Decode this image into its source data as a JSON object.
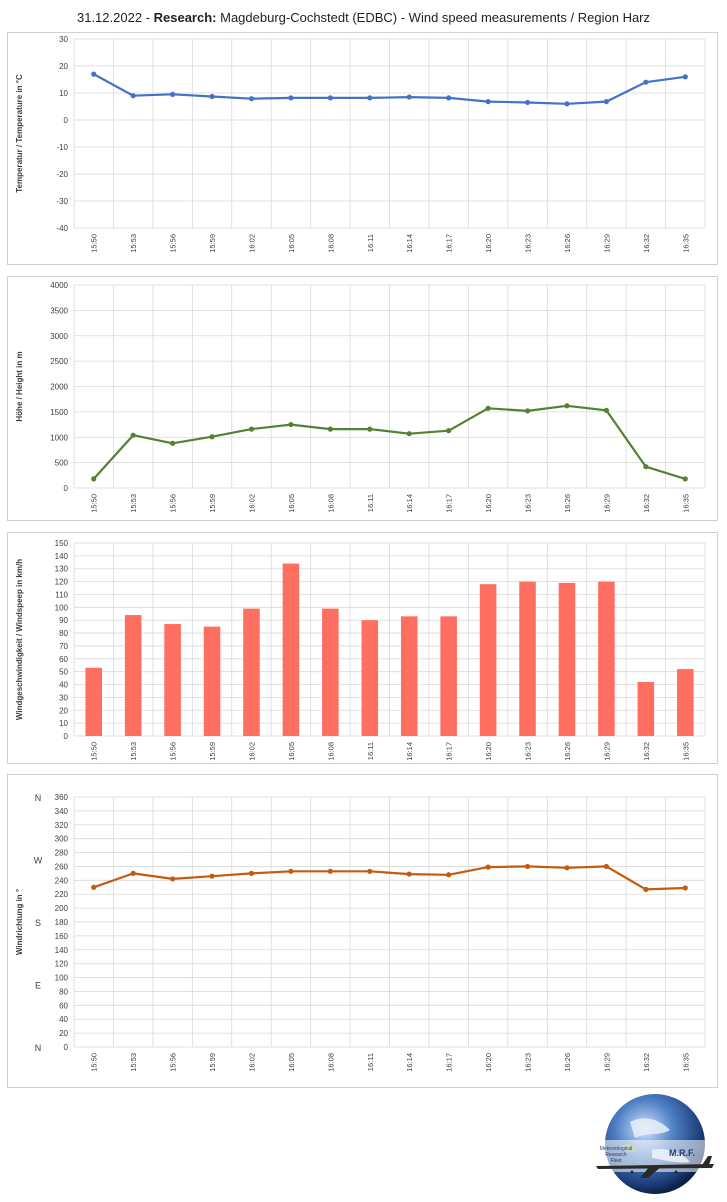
{
  "title": {
    "date": "31.12.2022",
    "sep": " - ",
    "research": "Research:",
    "rest": " Magdeburg-Cochstedt (EDBC) - Wind speed measurements / Region Harz"
  },
  "times": [
    "15:50",
    "15:53",
    "15:56",
    "15:59",
    "16:02",
    "16:05",
    "16:08",
    "16:11",
    "16:14",
    "16:17",
    "16:20",
    "16:23",
    "16:26",
    "16:29",
    "16:32",
    "16:35"
  ],
  "chart_data": [
    {
      "type": "line",
      "ylabel": "Temperatur / Temperature in °C",
      "ylim": [
        -40,
        30
      ],
      "ystep": 10,
      "color": "#4472C4",
      "values": [
        17,
        9,
        9.5,
        8.7,
        7.9,
        8.2,
        8.2,
        8.2,
        8.5,
        8.2,
        6.8,
        6.5,
        6,
        6.8,
        14,
        16
      ]
    },
    {
      "type": "line",
      "ylabel": "Höhe / Height in m",
      "ylim": [
        0,
        4000
      ],
      "ystep": 500,
      "color": "#548235",
      "values": [
        180,
        1040,
        880,
        1010,
        1160,
        1250,
        1160,
        1160,
        1070,
        1130,
        1570,
        1520,
        1620,
        1530,
        420,
        180
      ]
    },
    {
      "type": "bar",
      "ylabel": "Windgeschwindigkeit / Windspeep in km/h",
      "ylim": [
        0,
        150
      ],
      "ystep": 10,
      "color": "#FF6F61",
      "values": [
        53,
        94,
        87,
        85,
        99,
        134,
        99,
        90,
        93,
        93,
        118,
        120,
        119,
        120,
        42,
        52
      ]
    },
    {
      "type": "line",
      "ylabel": "Windrichtung in °",
      "ylim": [
        0,
        360
      ],
      "ystep": 20,
      "color": "#C55A11",
      "compass": [
        {
          "label": "N",
          "value": 360
        },
        {
          "label": "W",
          "value": 270
        },
        {
          "label": "S",
          "value": 180
        },
        {
          "label": "E",
          "value": 90
        },
        {
          "label": "N",
          "value": 0
        }
      ],
      "values": [
        230,
        250,
        242,
        246,
        250,
        253,
        253,
        253,
        249,
        248,
        259,
        260,
        258,
        260,
        227,
        229
      ]
    }
  ],
  "logo": {
    "line1": "Meteorological",
    "line2": "Research",
    "line3": "Fleet",
    "brand": "M.R.F."
  }
}
